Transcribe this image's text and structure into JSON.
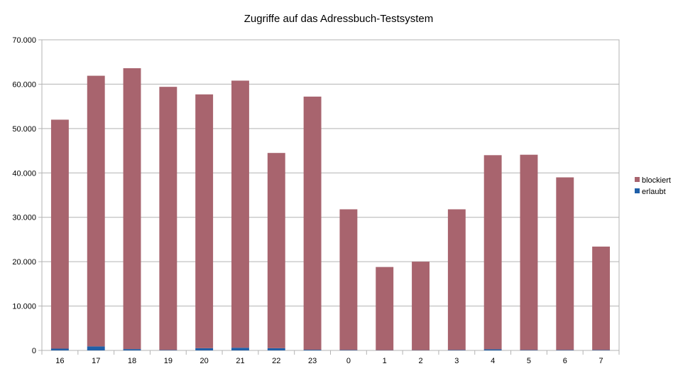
{
  "chart_data": {
    "type": "bar",
    "stacked": true,
    "title": "Zugriffe auf das Adressbuch-Testsystem",
    "xlabel": "",
    "ylabel": "",
    "categories": [
      "16",
      "17",
      "18",
      "19",
      "20",
      "21",
      "22",
      "23",
      "0",
      "1",
      "2",
      "3",
      "4",
      "5",
      "6",
      "7"
    ],
    "series": [
      {
        "name": "erlaubt",
        "color": "#1f5fa8",
        "values": [
          400,
          900,
          300,
          100,
          500,
          600,
          500,
          150,
          100,
          50,
          50,
          100,
          250,
          100,
          100,
          100
        ]
      },
      {
        "name": "blockiert",
        "color": "#a8646e",
        "values": [
          51600,
          61000,
          63300,
          59300,
          57200,
          60200,
          44000,
          57050,
          31700,
          18750,
          19950,
          31700,
          43750,
          44000,
          38900,
          23300
        ]
      }
    ],
    "legend_order": [
      "blockiert",
      "erlaubt"
    ],
    "ylim": [
      0,
      70000
    ],
    "yticks": [
      0,
      10000,
      20000,
      30000,
      40000,
      50000,
      60000,
      70000
    ],
    "ytick_labels": [
      "0",
      "10.000",
      "20.000",
      "30.000",
      "40.000",
      "50.000",
      "60.000",
      "70.000"
    ],
    "grid": true,
    "legend_position": "right"
  }
}
